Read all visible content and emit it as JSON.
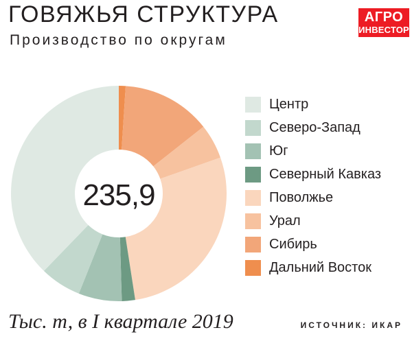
{
  "header": {
    "title": "ГОВЯЖЬЯ СТРУКТУРА",
    "subtitle": "Производство по округам"
  },
  "logo": {
    "line1": "АГРО",
    "line2": "ИНВЕСТОР"
  },
  "center_label": "235,9",
  "footnote": "Тыс. т, в I квартале 2019",
  "source": "ИСТОЧНИК: ИКАР",
  "chart_data": {
    "type": "pie",
    "subtype": "donut",
    "title": "ГОВЯЖЬЯ СТРУКТУРА",
    "subtitle": "Производство по округам",
    "total": 235.9,
    "unit": "Тыс. т, в I квартале 2019",
    "legend_position": "right",
    "start_angle_deg": 0,
    "direction": "clockwise",
    "categories": [
      "Дальний Восток",
      "Сибирь",
      "Урал",
      "Поволжье",
      "Северный Кавказ",
      "Юг",
      "Северо-Запад",
      "Центр"
    ],
    "values": [
      2.4,
      31.5,
      12.3,
      66.0,
      4.7,
      15.3,
      14.6,
      89.1
    ],
    "colors": [
      "#ef8e4e",
      "#f2a679",
      "#f7c29f",
      "#fad6bd",
      "#6d9a83",
      "#a3c2b3",
      "#c2d8cd",
      "#dfe9e3"
    ]
  },
  "legend": [
    {
      "label": "Центр",
      "color": "#dfe9e3"
    },
    {
      "label": "Северо-Запад",
      "color": "#c2d8cd"
    },
    {
      "label": "Юг",
      "color": "#a3c2b3"
    },
    {
      "label": "Северный Кавказ",
      "color": "#6d9a83"
    },
    {
      "label": "Поволжье",
      "color": "#fad6bd"
    },
    {
      "label": "Урал",
      "color": "#f7c29f"
    },
    {
      "label": "Сибирь",
      "color": "#f2a679"
    },
    {
      "label": "Дальний Восток",
      "color": "#ef8e4e"
    }
  ]
}
